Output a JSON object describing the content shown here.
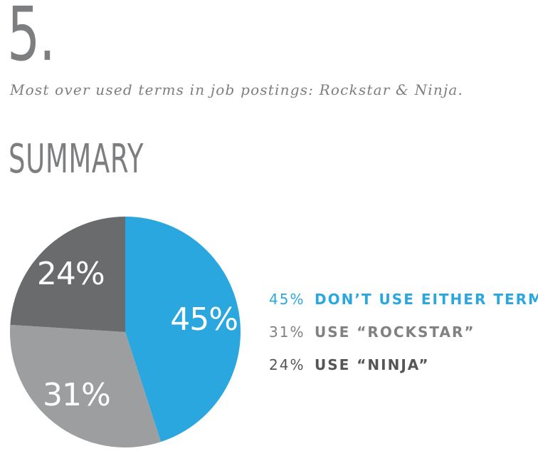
{
  "header": {
    "number": "5.",
    "subtitle": "Most over used terms in job postings: Rockstar & Ninja."
  },
  "section_title": "SUMMARY",
  "chart_data": {
    "type": "pie",
    "slices": [
      {
        "label": "DON’T USE EITHER TERM",
        "value": 45,
        "value_label": "45%",
        "color": "#2aa7df",
        "legend_color": "#2aa7df"
      },
      {
        "label": "USE “ROCKSTAR”",
        "value": 31,
        "value_label": "31%",
        "color": "#9d9ea0",
        "legend_color": "#808183"
      },
      {
        "label": "USE “NINJA”",
        "value": 24,
        "value_label": "24%",
        "color": "#6a6b6d",
        "legend_color": "#545557"
      }
    ],
    "start_angle_deg": 0,
    "direction": "clockwise",
    "legend_position": "right"
  }
}
